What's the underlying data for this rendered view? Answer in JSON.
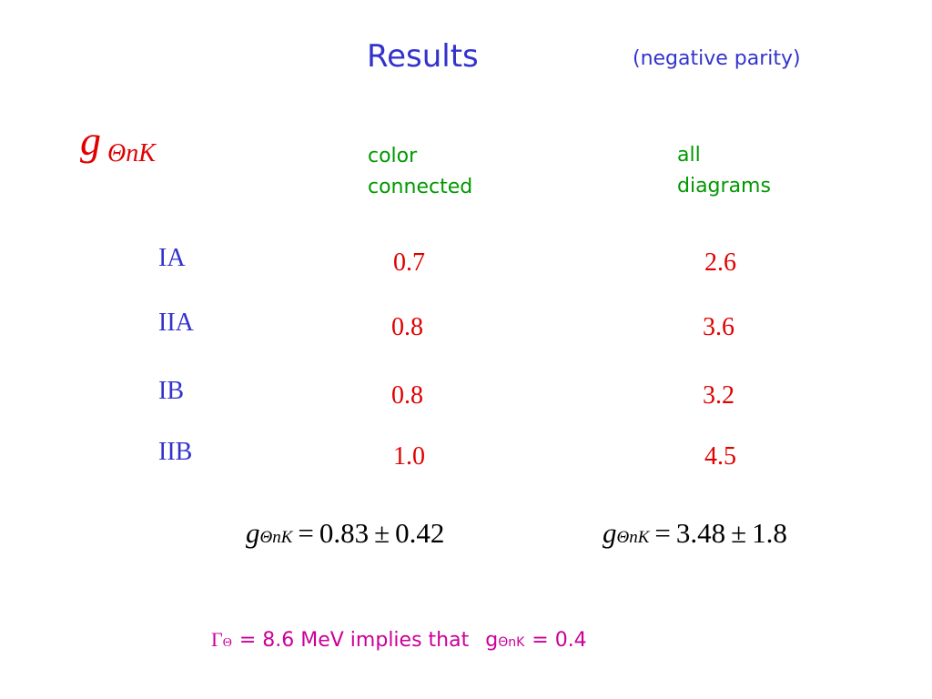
{
  "header": {
    "title": "Results",
    "note": "(negative parity)"
  },
  "coupling": {
    "symbol": "g",
    "subscript": "ΘnK"
  },
  "columns": [
    "color connected",
    "all diagrams"
  ],
  "table": {
    "rows": [
      [
        "IA",
        "0.7",
        "2.6"
      ],
      [
        "IIA",
        "0.8",
        "3.6"
      ],
      [
        "IB",
        "0.8",
        "3.2"
      ],
      [
        "IIB",
        "1.0",
        "4.5"
      ]
    ]
  },
  "averages": [
    {
      "symbol": "g",
      "subscript": "ΘnK",
      "equals": "=",
      "value": "0.83",
      "pm": "±",
      "error": "0.42"
    },
    {
      "symbol": "g",
      "subscript": "ΘnK",
      "equals": "=",
      "value": "3.48",
      "pm": "±",
      "error": "1.8"
    }
  ],
  "footer": {
    "gamma": "Γ",
    "gamma_sub": "Θ",
    "text": "= 8.6 MeV implies that",
    "g": "g",
    "g_sub": "ΘnK",
    "tail": "= 0.4"
  }
}
